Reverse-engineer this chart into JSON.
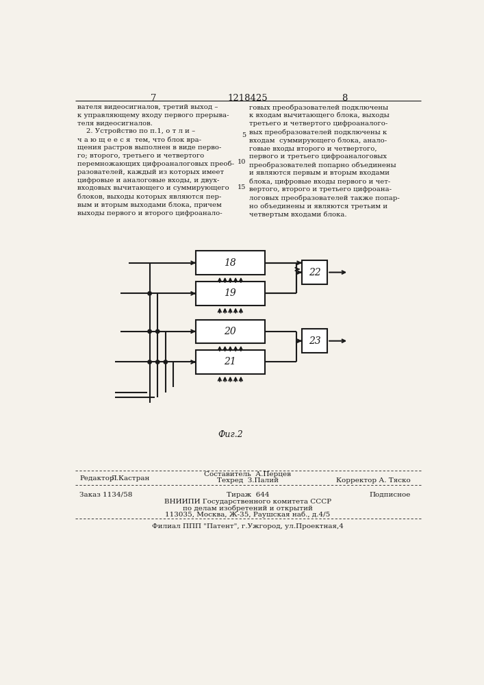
{
  "page_number_left": "7",
  "page_number_center": "1218425",
  "page_number_right": "8",
  "text_left": "вателя видеосигналов, третий выход –\nк управляющему входу первого прерыва-\nтеля видеосигналов.\n    2. Устройство по п.1, о т л и –\nч а ю щ е е с я  тем, что блок вра-\nщения растров выполнен в виде перво-\nго; второго, третьего и четвертого\nперемножающих цифроаналоговых преоб-\nразователей, каждый из которых имеет\nцифровые и аналоговые входы, и двух-\nвходовых вычитающего и суммирующего\nблоков, выходы которых являются пер-\nвым и вторым выходами блока, причем\nвыходы первого и второго цифроанало-",
  "text_right": "говых преобразователей подключены\nк входам вычитающего блока, выходы\nтретьего и четвертого цифроаналого-\nвых преобразователей подключены к\nвходам  суммирующего блока, анало-\nговые входы второго и четвертого,\nпервого и третьего цифроаналоговых\nпреобразователей попарно объединены\nи являются первым и вторым входами\nблока, цифровые входы первого и чет-\nвертого, второго и третьего цифроана-\nлоговых преобразователей также попар-\nно объединены и являются третьим и\nчетвертым входами блока.",
  "line_numbers_right": [
    [
      "5",
      95
    ],
    [
      "10",
      145
    ],
    [
      "15",
      193
    ]
  ],
  "fig_caption": "Фиг.2",
  "editor_label": "Редактор",
  "editor_name": "Л.Кастран",
  "composer_label": "Составитель",
  "composer_name": "А.Перцев",
  "techred_label": "Техред",
  "techred_name": "З.Палий",
  "corrector_label": "Корректор",
  "corrector_name": "А. Тяско",
  "order_text": "Заказ 1134/58",
  "tirazh_text": "Тираж  644",
  "podpisnoe_text": "Подписное",
  "vniiipi_text": "ВНИИПИ Государственного комитета СССР",
  "dela_text": "по делам изобретений и открытий",
  "address_text": "113035, Москва, Ж-35, Раушская наб., д.4/5",
  "filial_text": "Филиал ППП \"Патент\", г.Ужгород, ул.Проектная,4",
  "bg_color": "#f5f2eb",
  "text_color": "#1a1a1a"
}
